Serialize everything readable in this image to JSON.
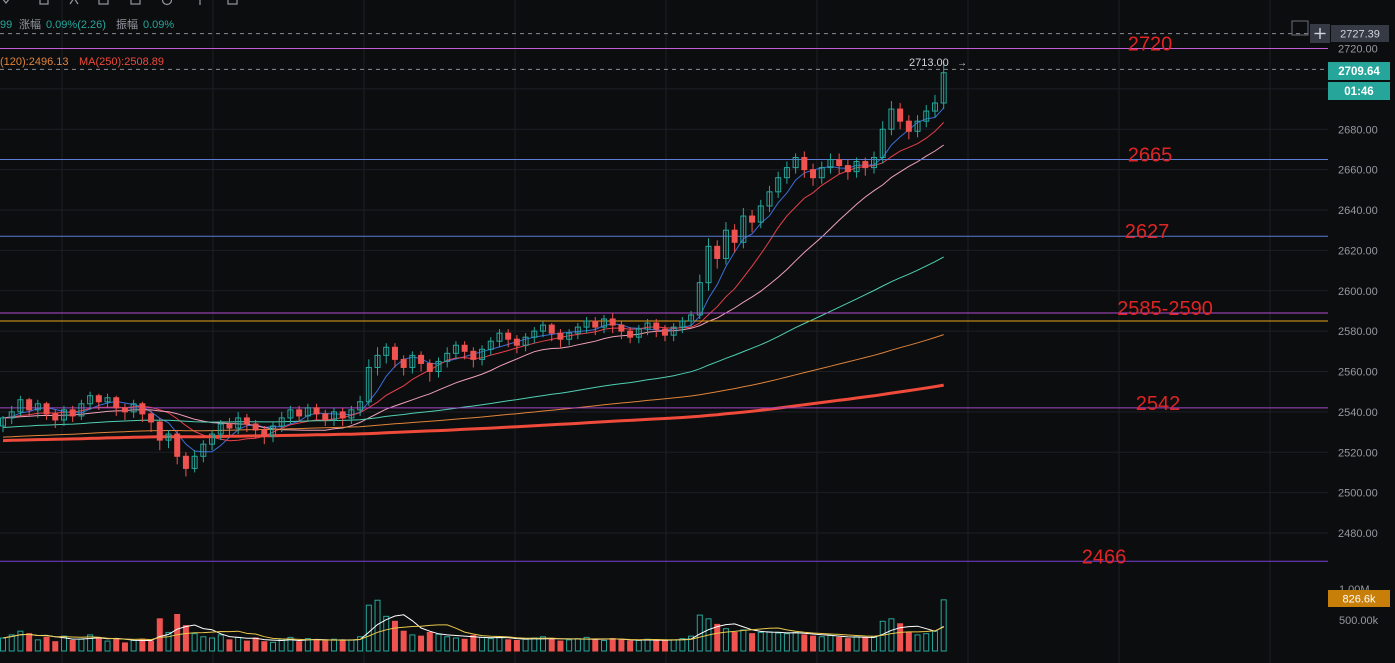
{
  "header": {
    "info_prefix": "99",
    "change_label": "涨幅",
    "change_value": "0.09%(2.26)",
    "amplitude_label": "振幅",
    "amplitude_value": "0.09%"
  },
  "ma_legend": {
    "ma120": "(120):2496.13",
    "ma250": "MA(250):2508.89"
  },
  "price_badges": {
    "top": "2727.39",
    "current": "2709.64",
    "countdown": "01:46",
    "high_marker": "2713.00",
    "high_arrow": "→"
  },
  "volume_badges": {
    "current": "826.6k"
  },
  "colors": {
    "background": "#0c0d0f",
    "up": "#26a69a",
    "down": "#ef5350",
    "annotation": "#e02424",
    "grid": "#1c1f26",
    "axis_text": "#9598a1",
    "badge_current": "#26a69a",
    "badge_volume": "#c87f0a"
  },
  "chart_data": {
    "type": "candlestick",
    "y_axis": {
      "range": [
        2463,
        2731
      ],
      "ticks": [
        2480,
        2500,
        2520,
        2540,
        2560,
        2580,
        2600,
        2620,
        2640,
        2660,
        2680,
        2700,
        2720
      ],
      "tick_labels": [
        "2480.00",
        "2500.00",
        "2520.00",
        "2540.00",
        "2560.00",
        "2580.00",
        "2600.00",
        "2620.00",
        "2640.00",
        "2660.00",
        "2680.00",
        "2700.00",
        "2720.00"
      ]
    },
    "volume_axis": {
      "range": [
        0,
        1050000
      ],
      "ticks": [
        500000,
        1000000
      ],
      "tick_labels": [
        "500.00k",
        "1.00M"
      ]
    },
    "horizontal_levels": [
      {
        "label": "2720",
        "value": 2720,
        "color": "#c45cd6"
      },
      {
        "label": "2665",
        "value": 2665,
        "color": "#5b7bd5"
      },
      {
        "label": "2627",
        "value": 2627,
        "color": "#5b7bd5"
      },
      {
        "label": "2585-2590",
        "value": 2589,
        "color": "#b44ad0"
      },
      {
        "label": "",
        "value": 2585,
        "color": "#e6a21c"
      },
      {
        "label": "2542",
        "value": 2542,
        "color": "#a148c9"
      },
      {
        "label": "2466",
        "value": 2466,
        "color": "#7b3fd1"
      }
    ],
    "dashed_levels": [
      2727.39,
      2709.64
    ],
    "candles": [
      [
        2533,
        2537,
        2530,
        2538
      ],
      [
        2537,
        2540,
        2534,
        2543
      ],
      [
        2540,
        2546,
        2538,
        2548
      ],
      [
        2546,
        2541,
        2538,
        2547
      ],
      [
        2541,
        2544,
        2537,
        2546
      ],
      [
        2544,
        2539,
        2536,
        2545
      ],
      [
        2539,
        2536,
        2532,
        2541
      ],
      [
        2536,
        2541,
        2533,
        2543
      ],
      [
        2541,
        2538,
        2535,
        2543
      ],
      [
        2538,
        2544,
        2536,
        2546
      ],
      [
        2544,
        2548,
        2541,
        2550
      ],
      [
        2548,
        2545,
        2541,
        2549
      ],
      [
        2545,
        2547,
        2542,
        2549
      ],
      [
        2547,
        2542,
        2538,
        2548
      ],
      [
        2542,
        2540,
        2536,
        2544
      ],
      [
        2540,
        2544,
        2537,
        2546
      ],
      [
        2544,
        2539,
        2535,
        2545
      ],
      [
        2539,
        2535,
        2530,
        2541
      ],
      [
        2535,
        2526,
        2521,
        2537
      ],
      [
        2526,
        2529,
        2522,
        2531
      ],
      [
        2529,
        2518,
        2514,
        2531
      ],
      [
        2518,
        2512,
        2508,
        2520
      ],
      [
        2512,
        2518,
        2510,
        2521
      ],
      [
        2518,
        2524,
        2515,
        2526
      ],
      [
        2524,
        2529,
        2521,
        2531
      ],
      [
        2529,
        2534,
        2526,
        2536
      ],
      [
        2534,
        2532,
        2528,
        2537
      ],
      [
        2532,
        2537,
        2529,
        2540
      ],
      [
        2537,
        2534,
        2530,
        2539
      ],
      [
        2534,
        2531,
        2527,
        2536
      ],
      [
        2531,
        2528,
        2524,
        2533
      ],
      [
        2528,
        2533,
        2525,
        2535
      ],
      [
        2533,
        2537,
        2530,
        2540
      ],
      [
        2537,
        2541,
        2534,
        2543
      ],
      [
        2541,
        2538,
        2535,
        2543
      ],
      [
        2538,
        2542,
        2535,
        2544
      ],
      [
        2542,
        2539,
        2536,
        2544
      ],
      [
        2539,
        2536,
        2533,
        2541
      ],
      [
        2536,
        2540,
        2533,
        2542
      ],
      [
        2540,
        2537,
        2533,
        2542
      ],
      [
        2537,
        2541,
        2534,
        2543
      ],
      [
        2541,
        2545,
        2538,
        2548
      ],
      [
        2545,
        2562,
        2543,
        2566
      ],
      [
        2562,
        2568,
        2558,
        2572
      ],
      [
        2568,
        2572,
        2564,
        2574
      ],
      [
        2572,
        2566,
        2562,
        2574
      ],
      [
        2566,
        2562,
        2558,
        2568
      ],
      [
        2562,
        2568,
        2559,
        2570
      ],
      [
        2568,
        2564,
        2560,
        2570
      ],
      [
        2564,
        2560,
        2555,
        2566
      ],
      [
        2560,
        2565,
        2557,
        2567
      ],
      [
        2565,
        2569,
        2562,
        2572
      ],
      [
        2569,
        2573,
        2566,
        2575
      ],
      [
        2573,
        2570,
        2566,
        2575
      ],
      [
        2570,
        2566,
        2562,
        2572
      ],
      [
        2566,
        2571,
        2563,
        2573
      ],
      [
        2571,
        2575,
        2568,
        2577
      ],
      [
        2575,
        2579,
        2572,
        2581
      ],
      [
        2579,
        2576,
        2572,
        2581
      ],
      [
        2576,
        2573,
        2569,
        2578
      ],
      [
        2573,
        2577,
        2570,
        2579
      ],
      [
        2577,
        2580,
        2574,
        2582
      ],
      [
        2580,
        2583,
        2577,
        2585
      ],
      [
        2583,
        2579,
        2575,
        2584
      ],
      [
        2579,
        2576,
        2572,
        2581
      ],
      [
        2576,
        2579,
        2573,
        2581
      ],
      [
        2579,
        2582,
        2576,
        2584
      ],
      [
        2582,
        2585,
        2579,
        2587
      ],
      [
        2585,
        2582,
        2578,
        2587
      ],
      [
        2582,
        2586,
        2579,
        2588
      ],
      [
        2586,
        2583,
        2579,
        2589
      ],
      [
        2583,
        2580,
        2576,
        2585
      ],
      [
        2580,
        2577,
        2574,
        2582
      ],
      [
        2577,
        2581,
        2574,
        2583
      ],
      [
        2581,
        2584,
        2578,
        2586
      ],
      [
        2584,
        2581,
        2577,
        2586
      ],
      [
        2581,
        2578,
        2575,
        2583
      ],
      [
        2578,
        2582,
        2575,
        2584
      ],
      [
        2582,
        2585,
        2579,
        2587
      ],
      [
        2585,
        2588,
        2582,
        2590
      ],
      [
        2588,
        2604,
        2586,
        2608
      ],
      [
        2604,
        2622,
        2600,
        2626
      ],
      [
        2622,
        2616,
        2611,
        2625
      ],
      [
        2616,
        2630,
        2613,
        2634
      ],
      [
        2630,
        2624,
        2619,
        2633
      ],
      [
        2624,
        2637,
        2621,
        2641
      ],
      [
        2637,
        2634,
        2629,
        2640
      ],
      [
        2634,
        2642,
        2631,
        2645
      ],
      [
        2642,
        2649,
        2639,
        2652
      ],
      [
        2649,
        2656,
        2646,
        2659
      ],
      [
        2656,
        2661,
        2653,
        2664
      ],
      [
        2661,
        2666,
        2658,
        2668
      ],
      [
        2666,
        2660,
        2656,
        2669
      ],
      [
        2660,
        2656,
        2652,
        2663
      ],
      [
        2656,
        2661,
        2653,
        2664
      ],
      [
        2661,
        2665,
        2658,
        2668
      ],
      [
        2665,
        2662,
        2658,
        2668
      ],
      [
        2662,
        2659,
        2655,
        2665
      ],
      [
        2659,
        2664,
        2656,
        2666
      ],
      [
        2664,
        2661,
        2657,
        2666
      ],
      [
        2661,
        2666,
        2658,
        2669
      ],
      [
        2666,
        2680,
        2663,
        2684
      ],
      [
        2680,
        2690,
        2677,
        2694
      ],
      [
        2690,
        2684,
        2680,
        2693
      ],
      [
        2684,
        2679,
        2675,
        2687
      ],
      [
        2679,
        2684,
        2676,
        2687
      ],
      [
        2684,
        2689,
        2681,
        2692
      ],
      [
        2689,
        2693,
        2686,
        2697
      ],
      [
        2693,
        2708,
        2690,
        2713
      ]
    ],
    "volumes": [
      210000,
      260000,
      320000,
      280000,
      180000,
      220000,
      150000,
      240000,
      170000,
      190000,
      260000,
      210000,
      160000,
      200000,
      130000,
      170000,
      190000,
      160000,
      520000,
      300000,
      590000,
      410000,
      280000,
      230000,
      210000,
      260000,
      180000,
      220000,
      160000,
      210000,
      150000,
      140000,
      190000,
      220000,
      150000,
      200000,
      180000,
      160000,
      190000,
      170000,
      180000,
      230000,
      740000,
      820000,
      560000,
      480000,
      320000,
      260000,
      240000,
      300000,
      270000,
      230000,
      210000,
      190000,
      250000,
      220000,
      200000,
      230000,
      180000,
      170000,
      190000,
      210000,
      230000,
      200000,
      160000,
      180000,
      200000,
      220000,
      190000,
      170000,
      200000,
      180000,
      160000,
      170000,
      190000,
      180000,
      170000,
      180000,
      200000,
      240000,
      580000,
      520000,
      430000,
      360000,
      300000,
      340000,
      280000,
      300000,
      310000,
      290000,
      280000,
      300000,
      260000,
      240000,
      230000,
      250000,
      220000,
      200000,
      230000,
      210000,
      230000,
      480000,
      520000,
      440000,
      300000,
      260000,
      280000,
      320000,
      826600
    ],
    "moving_averages": [
      {
        "period": 5,
        "color": "#3a6fd8",
        "width": 1
      },
      {
        "period": 10,
        "color": "#e8404a",
        "width": 1
      },
      {
        "period": 20,
        "color": "#f0a0b8",
        "width": 1
      },
      {
        "period": 60,
        "color": "#4fd0b4",
        "width": 1
      },
      {
        "period": 120,
        "color": "#e0843a",
        "width": 1
      },
      {
        "period": 250,
        "color": "#ef4a3a",
        "width": 3
      }
    ]
  }
}
